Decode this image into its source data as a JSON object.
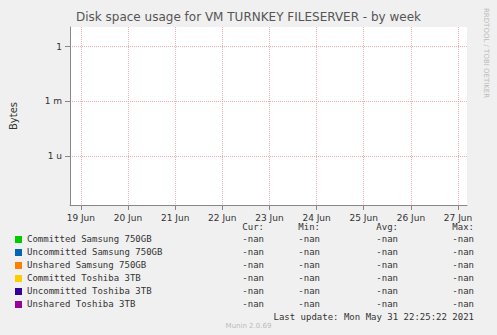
{
  "chart_data": {
    "type": "line",
    "title": "Disk space usage for VM TURNKEY FILESERVER - by week",
    "y_label": "Bytes",
    "log": "y",
    "grid": true,
    "legend": "bottom",
    "x": [],
    "xlim": [
      18.77,
      27.19
    ],
    "xticks": [
      {
        "value": 19,
        "label": "19 Jun"
      },
      {
        "value": 20,
        "label": "20 Jun"
      },
      {
        "value": 21,
        "label": "21 Jun"
      },
      {
        "value": 22,
        "label": "22 Jun"
      },
      {
        "value": 23,
        "label": "23 Jun"
      },
      {
        "value": 24,
        "label": "24 Jun"
      },
      {
        "value": 25,
        "label": "25 Jun"
      },
      {
        "value": 26,
        "label": "26 Jun"
      },
      {
        "value": 27,
        "label": "27 Jun"
      }
    ],
    "ylim": [
      2e-09,
      12
    ],
    "yticks": [
      {
        "value": 1e-06,
        "label": "1 u"
      },
      {
        "value": 0.001,
        "label": "1 m"
      },
      1
    ],
    "legend_columns": [
      "Cur:",
      "Min:",
      "Avg:",
      "Max:"
    ],
    "series": [
      {
        "name": "Committed Samsung 750GB",
        "color": "#00cc00",
        "values": [],
        "cur": "-nan",
        "min": "-nan",
        "avg": "-nan",
        "max": "-nan"
      },
      {
        "name": "Uncommitted Samsung 750GB",
        "color": "#0066b3",
        "values": [],
        "cur": "-nan",
        "min": "-nan",
        "avg": "-nan",
        "max": "-nan"
      },
      {
        "name": "Unshared Samsung 750GB",
        "color": "#ff8000",
        "values": [],
        "cur": "-nan",
        "min": "-nan",
        "avg": "-nan",
        "max": "-nan"
      },
      {
        "name": "Committed Toshiba 3TB",
        "color": "#ffcc00",
        "values": [],
        "cur": "-nan",
        "min": "-nan",
        "avg": "-nan",
        "max": "-nan"
      },
      {
        "name": "Uncommitted Toshiba 3TB",
        "color": "#330099",
        "values": [],
        "cur": "-nan",
        "min": "-nan",
        "avg": "-nan",
        "max": "-nan"
      },
      {
        "name": "Unshared Toshiba 3TB",
        "color": "#990099",
        "values": [],
        "cur": "-nan",
        "min": "-nan",
        "avg": "-nan",
        "max": "-nan"
      }
    ],
    "last_update": "Last update: Mon May 31 22:25:22 2021",
    "credit": "Munin 2.0.69",
    "side_text": "RRDTOOL / TOBI OETIKER"
  }
}
